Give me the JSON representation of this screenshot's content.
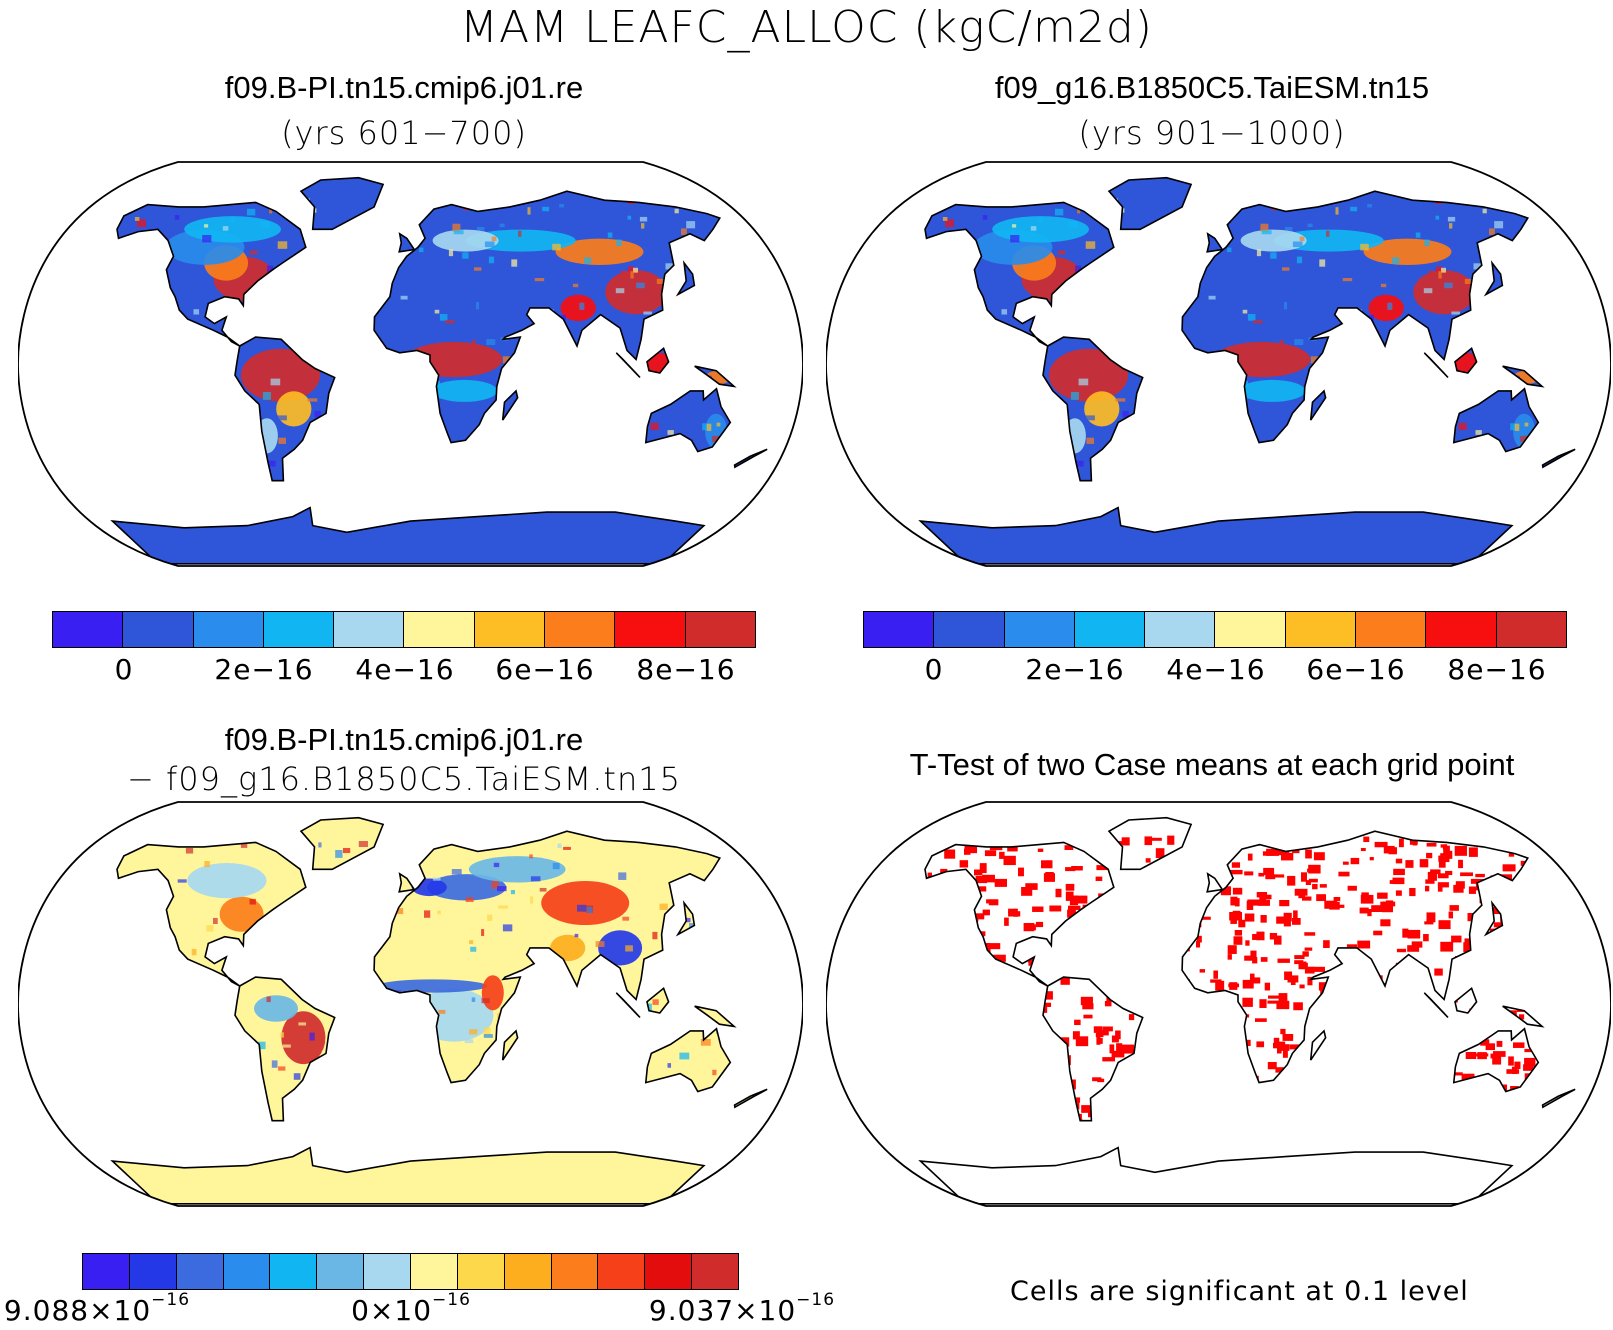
{
  "title": "MAM LEAFC_ALLOC (kgC/m2d)",
  "panels": {
    "top_left": {
      "case": "f09.B-PI.tn15.cmip6.j01.re",
      "years": "(yrs 601−700)"
    },
    "top_right": {
      "case": "f09_g16.B1850C5.TaiESM.tn15",
      "years": "(yrs 901−1000)"
    },
    "bottom_left": {
      "case": "f09.B-PI.tn15.cmip6.j01.re",
      "minus_case": "− f09_g16.B1850C5.TaiESM.tn15"
    },
    "bottom_right": {
      "title": "T-Test of two Case means at each grid point",
      "note": "Cells are significant at 0.1 level"
    }
  },
  "colorbar_abs": {
    "colors": [
      "#3a1ff2",
      "#2f55d9",
      "#2a8cec",
      "#11b5f2",
      "#a7d8f0",
      "#fff59b",
      "#fdbd24",
      "#fb7d1b",
      "#f70f0f",
      "#d02c2c"
    ],
    "tick_labels": [
      "0",
      "2e−16",
      "4e−16",
      "6e−16",
      "8e−16"
    ]
  },
  "colorbar_diff": {
    "colors": [
      "#3a1ff2",
      "#2438e8",
      "#3c6be0",
      "#2a8cec",
      "#11b5f2",
      "#6ab7e6",
      "#a7d8f0",
      "#fff59b",
      "#fdd84a",
      "#fdae1e",
      "#fb7d1b",
      "#f6401a",
      "#e30d0d",
      "#d02c2c"
    ],
    "tick_labels": [
      {
        "mantissa": "9.088×10",
        "exp": "−16"
      },
      {
        "mantissa": "0×10",
        "exp": "−16"
      },
      {
        "mantissa": "9.037×10",
        "exp": "−16"
      }
    ]
  },
  "map_colors": {
    "ocean": "#ffffff",
    "land_base_abs": "#2f55d9",
    "land_base_diff": "#fff59b",
    "significant": "#ff0000"
  }
}
